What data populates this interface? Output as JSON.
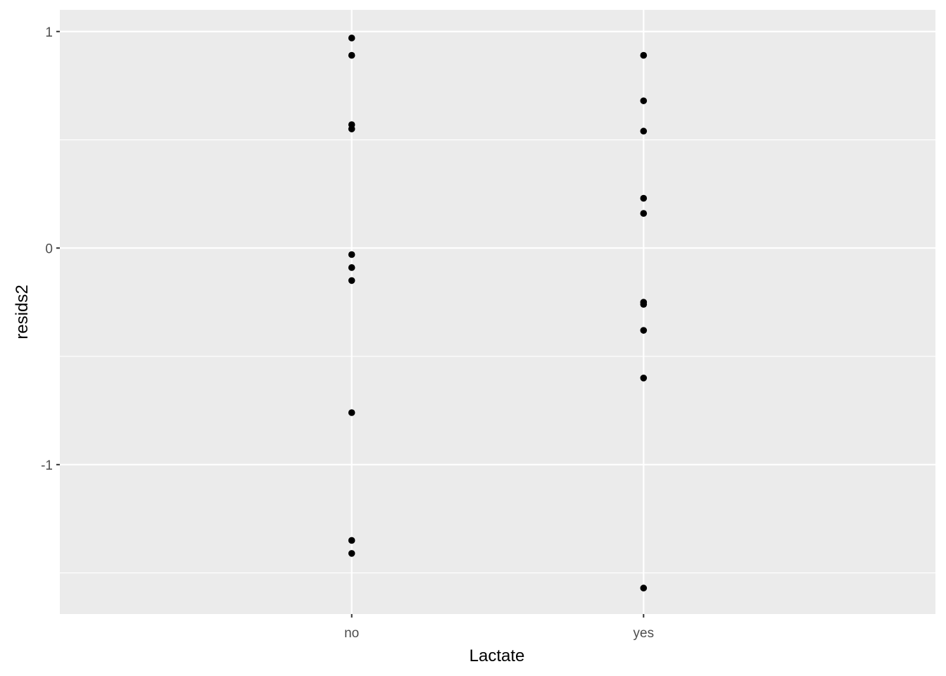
{
  "chart_data": {
    "type": "scatter",
    "title": "",
    "xlabel": "Lactate",
    "ylabel": "resids2",
    "categories": [
      "no",
      "yes"
    ],
    "x_tick_labels": [
      "no",
      "yes"
    ],
    "y_ticks": [
      -1,
      0,
      1
    ],
    "y_tick_labels": [
      "-1",
      "0",
      "1"
    ],
    "ylim": [
      -1.69,
      1.1
    ],
    "grid": true,
    "legend": "none",
    "points": [
      {
        "x": "no",
        "y": 0.97
      },
      {
        "x": "no",
        "y": 0.89
      },
      {
        "x": "no",
        "y": 0.57
      },
      {
        "x": "no",
        "y": 0.55
      },
      {
        "x": "no",
        "y": -0.03
      },
      {
        "x": "no",
        "y": -0.09
      },
      {
        "x": "no",
        "y": -0.15
      },
      {
        "x": "no",
        "y": -0.76
      },
      {
        "x": "no",
        "y": -1.35
      },
      {
        "x": "no",
        "y": -1.41
      },
      {
        "x": "yes",
        "y": 0.89
      },
      {
        "x": "yes",
        "y": 0.68
      },
      {
        "x": "yes",
        "y": 0.54
      },
      {
        "x": "yes",
        "y": 0.23
      },
      {
        "x": "yes",
        "y": 0.16
      },
      {
        "x": "yes",
        "y": -0.25
      },
      {
        "x": "yes",
        "y": -0.26
      },
      {
        "x": "yes",
        "y": -0.38
      },
      {
        "x": "yes",
        "y": -0.6
      },
      {
        "x": "yes",
        "y": -1.57
      }
    ],
    "colors": {
      "panel_background": "#ebebeb",
      "grid": "#ffffff",
      "point": "#000000",
      "tick_text": "#4d4d4d",
      "title_text": "#000000"
    }
  }
}
